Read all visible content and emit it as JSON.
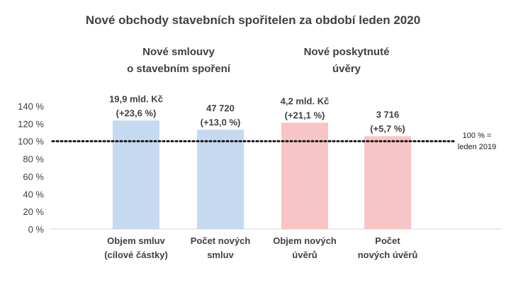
{
  "chart_data": {
    "type": "bar",
    "title": "Nové obchody stavebních spořitelen za období leden 2020",
    "group_labels": [
      [
        "Nové smlouvy",
        "o stavebním spoření"
      ],
      [
        "Nové poskytnuté",
        "úvěry"
      ]
    ],
    "categories": [
      [
        "Objem smluv",
        "(cílové částky)"
      ],
      [
        "Počet  nových",
        "smluv"
      ],
      [
        "Objem nových",
        "úvěrů"
      ],
      [
        "Počet",
        "nových úvěrů"
      ]
    ],
    "values": [
      123.6,
      113.0,
      121.1,
      105.7
    ],
    "data_labels": [
      [
        "19,9 mld. Kč",
        "(+23,6 %)"
      ],
      [
        "47 720",
        "(+13,0 %)"
      ],
      [
        "4,2 mld. Kč",
        "(+21,1 %)"
      ],
      [
        "3 716",
        "(+5,7 %)"
      ]
    ],
    "bar_colors": [
      "#c5d9f1",
      "#c5d9f1",
      "#f7c5c5",
      "#f7c5c5"
    ],
    "yticks": [
      "0 %",
      "20 %",
      "40 %",
      "60 %",
      "80 %",
      "100 %",
      "120 %",
      "140 %"
    ],
    "ylim": [
      0,
      150
    ],
    "reference_line": {
      "value": 100,
      "label": [
        "100 % =",
        "leden 2019"
      ],
      "style": "dotted"
    },
    "grid": false,
    "legend": "none"
  }
}
